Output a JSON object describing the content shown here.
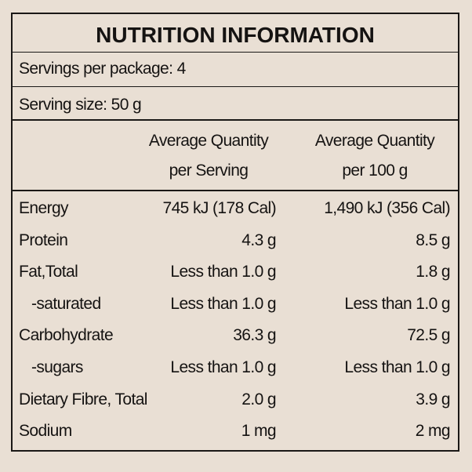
{
  "header": {
    "title": "NUTRITION INFORMATION"
  },
  "servings": "Servings per package: 4",
  "serving_size": "Serving size: 50 g",
  "table": {
    "columns": [
      {
        "line1": "Average Quantity",
        "line2": "per Serving"
      },
      {
        "line1": "Average Quantity",
        "line2": "per 100 g"
      }
    ],
    "rows": [
      [
        "Energy",
        "745 kJ (178 Cal)",
        "1,490 kJ (356 Cal)"
      ],
      [
        "Protein",
        "4.3 g",
        "8.5 g"
      ],
      [
        "Fat,Total",
        "Less than 1.0 g",
        "1.8 g"
      ],
      [
        "-saturated",
        "Less than 1.0 g",
        "Less than 1.0 g"
      ],
      [
        "Carbohydrate",
        "36.3 g",
        "72.5 g"
      ],
      [
        "-sugars",
        "Less than 1.0 g",
        "Less than 1.0 g"
      ],
      [
        "Dietary Fibre, Total",
        "2.0 g",
        "3.9 g"
      ],
      [
        "Sodium",
        "1 mg",
        "2 mg"
      ]
    ]
  }
}
